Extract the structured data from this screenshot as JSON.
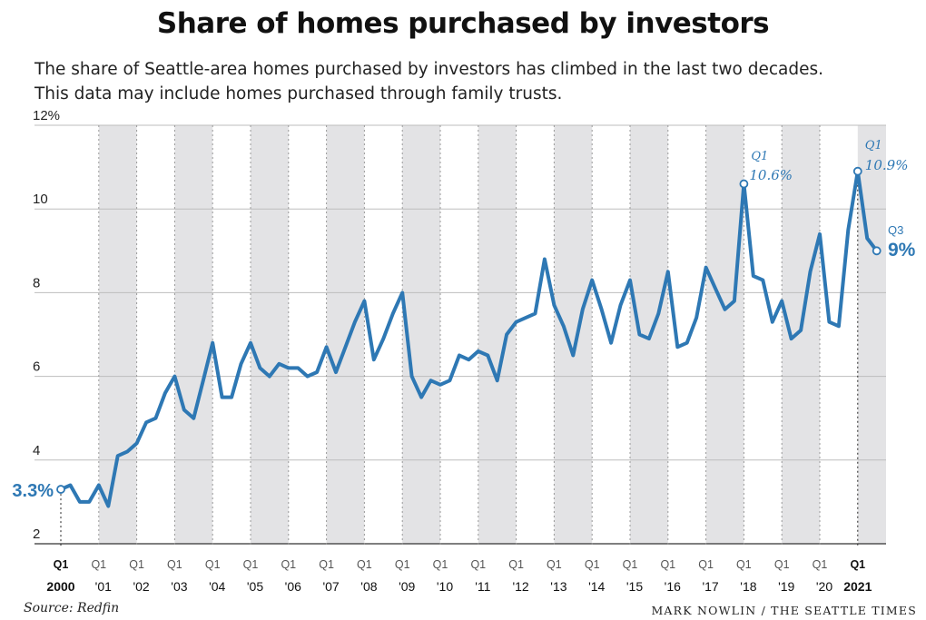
{
  "title": "Share of homes purchased by investors",
  "subtitle_lines": [
    "The share of Seattle-area homes purchased by investors has climbed in the last two decades.",
    "This data may include homes purchased through family trusts."
  ],
  "source": "Source: Redfin",
  "credit": "MARK NOWLIN / THE SEATTLE TIMES",
  "colors": {
    "line": "#2e78b4",
    "band": "#e3e3e5",
    "grid": "#bdbdbd",
    "annotation": "#2e78b4"
  },
  "chart_data": {
    "type": "line",
    "title": "Share of homes purchased by investors",
    "xlabel": "",
    "ylabel": "",
    "ylim": [
      2,
      12
    ],
    "yticks": [
      "12%",
      "10",
      "8",
      "6",
      "4",
      "2"
    ],
    "grid": true,
    "alternating_year_bands": true,
    "quarter_label": "Q1",
    "year_labels": [
      "2000",
      "'01",
      "'02",
      "'03",
      "'04",
      "'05",
      "'06",
      "'07",
      "'08",
      "'09",
      "'10",
      "'11",
      "'12",
      "'13",
      "'14",
      "'15",
      "'16",
      "'17",
      "'18",
      "'19",
      "'20",
      "2021"
    ],
    "x_start": "2000 Q1",
    "x_end": "2021 Q3",
    "series": [
      {
        "values": [
          3.3,
          3.4,
          3.0,
          3.0,
          3.4,
          2.9,
          4.1,
          4.2,
          4.4,
          4.9,
          5.0,
          5.6,
          6.0,
          5.2,
          5.0,
          5.9,
          6.8,
          5.5,
          5.5,
          6.3,
          6.8,
          6.2,
          6.0,
          6.3,
          6.2,
          6.2,
          6.0,
          6.1,
          6.7,
          6.1,
          6.7,
          7.3,
          7.8,
          6.4,
          6.9,
          7.5,
          8.0,
          6.0,
          5.5,
          5.9,
          5.8,
          5.9,
          6.5,
          6.4,
          6.6,
          6.5,
          5.9,
          7.0,
          7.3,
          7.4,
          7.5,
          8.8,
          7.7,
          7.2,
          6.5,
          7.6,
          8.3,
          7.6,
          6.8,
          7.7,
          8.3,
          7.0,
          6.9,
          7.5,
          8.5,
          6.7,
          6.8,
          7.4,
          8.6,
          8.1,
          7.6,
          7.8,
          10.6,
          8.4,
          8.3,
          7.3,
          7.8,
          6.9,
          7.1,
          8.5,
          9.4,
          7.3,
          7.2,
          9.5,
          10.9,
          9.3,
          9.0
        ]
      }
    ],
    "annotations": [
      {
        "period": "2000 Q1",
        "value_label": "3.3%"
      },
      {
        "period": "2018 Q1",
        "quarter": "Q1",
        "value_label": "10.6%"
      },
      {
        "period": "2021 Q1",
        "quarter": "Q1",
        "value_label": "10.9%"
      },
      {
        "period": "2021 Q3",
        "quarter": "Q3",
        "value_label": "9%"
      }
    ]
  }
}
